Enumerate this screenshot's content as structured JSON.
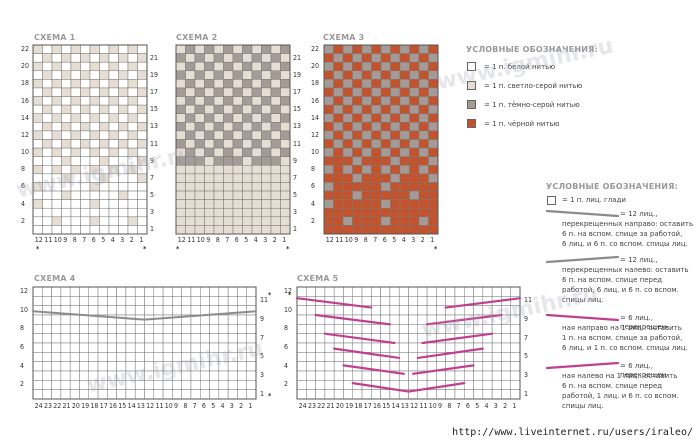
{
  "schemes": {
    "s1": {
      "title": "СХЕМА 1",
      "col_labels": [
        "12",
        "11",
        "10",
        "9",
        "8",
        "7",
        "6",
        "5",
        "4",
        "3",
        "2",
        "1"
      ],
      "left_rows": [
        "22",
        "20",
        "18",
        "16",
        "14",
        "12",
        "10",
        "8",
        "6",
        "4",
        "2"
      ],
      "right_rows": [
        "21",
        "19",
        "17",
        "15",
        "13",
        "11",
        "9",
        "7",
        "5",
        "3",
        "1"
      ],
      "star": "*"
    },
    "s2": {
      "title": "СХЕМА 2",
      "col_labels": [
        "12",
        "11",
        "10",
        "9",
        "8",
        "7",
        "6",
        "5",
        "4",
        "3",
        "2",
        "1"
      ],
      "right_rows": [
        "21",
        "19",
        "17",
        "15",
        "13",
        "11",
        "9",
        "7",
        "5",
        "3",
        "1"
      ],
      "star": "*"
    },
    "s3": {
      "title": "СХЕМА 3",
      "col_labels": [
        "12",
        "11",
        "10",
        "9",
        "8",
        "7",
        "6",
        "5",
        "4",
        "3",
        "2",
        "1"
      ],
      "left_rows": [
        "22",
        "20",
        "18",
        "16",
        "14",
        "12",
        "10",
        "8",
        "6",
        "4",
        "2"
      ],
      "star": "*"
    },
    "s4": {
      "title": "СХЕМА 4",
      "col_labels": [
        "24",
        "23",
        "22",
        "21",
        "20",
        "19",
        "18",
        "17",
        "16",
        "15",
        "14",
        "13",
        "12",
        "11",
        "10",
        "9",
        "8",
        "7",
        "6",
        "5",
        "4",
        "3",
        "2",
        "1"
      ],
      "left_rows": [
        "12",
        "10",
        "8",
        "6",
        "4",
        "2"
      ],
      "right_rows": [
        "11",
        "9",
        "7",
        "5",
        "3",
        "1"
      ],
      "star": "*"
    },
    "s5": {
      "title": "СХЕМА 5",
      "col_labels": [
        "24",
        "23",
        "22",
        "21",
        "20",
        "19",
        "18",
        "17",
        "16",
        "15",
        "14",
        "13",
        "12",
        "11",
        "10",
        "9",
        "8",
        "7",
        "6",
        "5",
        "4",
        "3",
        "2",
        "1"
      ],
      "left_rows": [
        "12",
        "10",
        "8",
        "6",
        "4",
        "2"
      ],
      "right_rows": [
        "11",
        "9",
        "7",
        "5",
        "3",
        "1"
      ],
      "star": "*"
    }
  },
  "legend1": {
    "title": "УСЛОВНЫЕ ОБОЗНАЧЕНИЯ:",
    "items": [
      {
        "text": "= 1 п. белой нитью",
        "color": "#ffffff"
      },
      {
        "text": "= 1 п. светло-серой нитью",
        "color": "#e6ddd3"
      },
      {
        "text": "= 1 п. тёмно-серой нитью",
        "color": "#a59a96"
      },
      {
        "text": "= 1 п. чёрной нитью",
        "color": "#c3532c"
      }
    ]
  },
  "legend2": {
    "title": "УСЛОВНЫЕ ОБОЗНАЧЕНИЯ:",
    "items": [
      {
        "lines": [
          "= 1 п. лиц. глади"
        ]
      },
      {
        "lines": [
          "= 12 лиц.,",
          "перекрещенных направо: оставить",
          "6 п. на вспом. спице за работой,",
          "6 лиц. и 6 п. со вспом. спицы лиц."
        ]
      },
      {
        "lines": [
          "= 12 лиц.,",
          "перекрещенных налево: оставить",
          "6 п. на вспом. спице перед",
          "работой, 6 лиц. и 6 п. со вспом.",
          "спицы лиц."
        ]
      },
      {
        "lines": [
          "= 6 лиц., перекрещен-",
          "ная направо на 1 лиц.: оставить",
          "1 п. на вспом. спице за работой,",
          "6 лиц. и 1 п. со вспом. спицы лиц."
        ]
      },
      {
        "lines": [
          "= 6 лиц., перекрещен-",
          "ная налево на 1 лиц.: оставить",
          "6 п. на вспом. спице перед",
          "работой, 1 лиц. и 6 п. со вспом.",
          "спицы лиц."
        ]
      }
    ]
  },
  "colors": {
    "white": "#ffffff",
    "light": "#e6ddd3",
    "dark": "#a59a96",
    "black": "#c3532c",
    "grid": "#777777",
    "cable": "#c0408f",
    "cable_gray": "#8f8a8a"
  },
  "watermark": "www.igmihr.ru",
  "footer_url": "http://www.liveinternet.ru/users/iraleo/"
}
